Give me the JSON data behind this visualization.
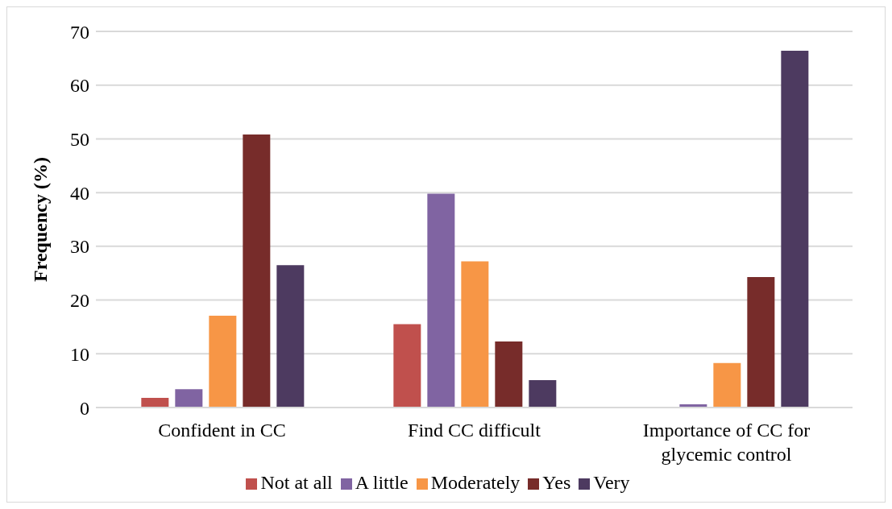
{
  "chart_data": {
    "type": "bar",
    "ylabel": "Frequency (%)",
    "categories": [
      "Confident in CC",
      "Find CC difficult",
      "Importance of CC for glycemic control"
    ],
    "series": [
      {
        "name": "Not at all",
        "color": "#c0504d",
        "values": [
          1.8,
          15.5,
          0
        ]
      },
      {
        "name": "A little",
        "color": "#8064a2",
        "values": [
          3.4,
          39.8,
          0.6
        ]
      },
      {
        "name": "Moderately",
        "color": "#f79646",
        "values": [
          17.1,
          27.2,
          8.3
        ]
      },
      {
        "name": "Yes",
        "color": "#772c2a",
        "values": [
          50.8,
          12.3,
          24.3
        ]
      },
      {
        "name": "Very",
        "color": "#4d3a60",
        "values": [
          26.5,
          5.1,
          66.4
        ]
      }
    ],
    "ylim": [
      0,
      70
    ],
    "yticks": [
      0,
      10,
      20,
      30,
      40,
      50,
      60,
      70
    ],
    "grid": "y",
    "legend": "bottom"
  }
}
